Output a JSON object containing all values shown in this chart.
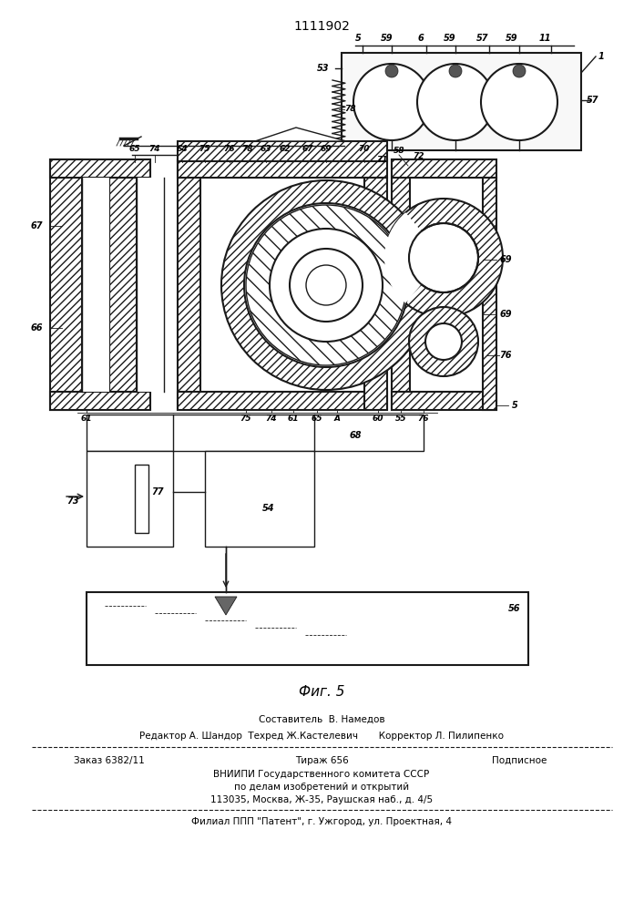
{
  "patent_number": "1111902",
  "figure_label": "Фиг. 5",
  "line_color": "#1a1a1a",
  "footer": {
    "line1": "Составитель  В. Намедов",
    "line2": "Редактор А. Шандор  Техред Ж.Кастелевич       Корректор Л. Пилипенко",
    "line3a": "Заказ 6382/11",
    "line3b": "Тираж 656",
    "line3c": "Подписное",
    "line4": "ВНИИПИ Государственного комитета СССР",
    "line5": "по делам изобретений и открытий",
    "line6": "113035, Москва, Ж-35, Раушская наб., д. 4/5",
    "line7": "Филиал ППП \"Патент\", г. Ужгород, ул. Проектная, 4"
  }
}
